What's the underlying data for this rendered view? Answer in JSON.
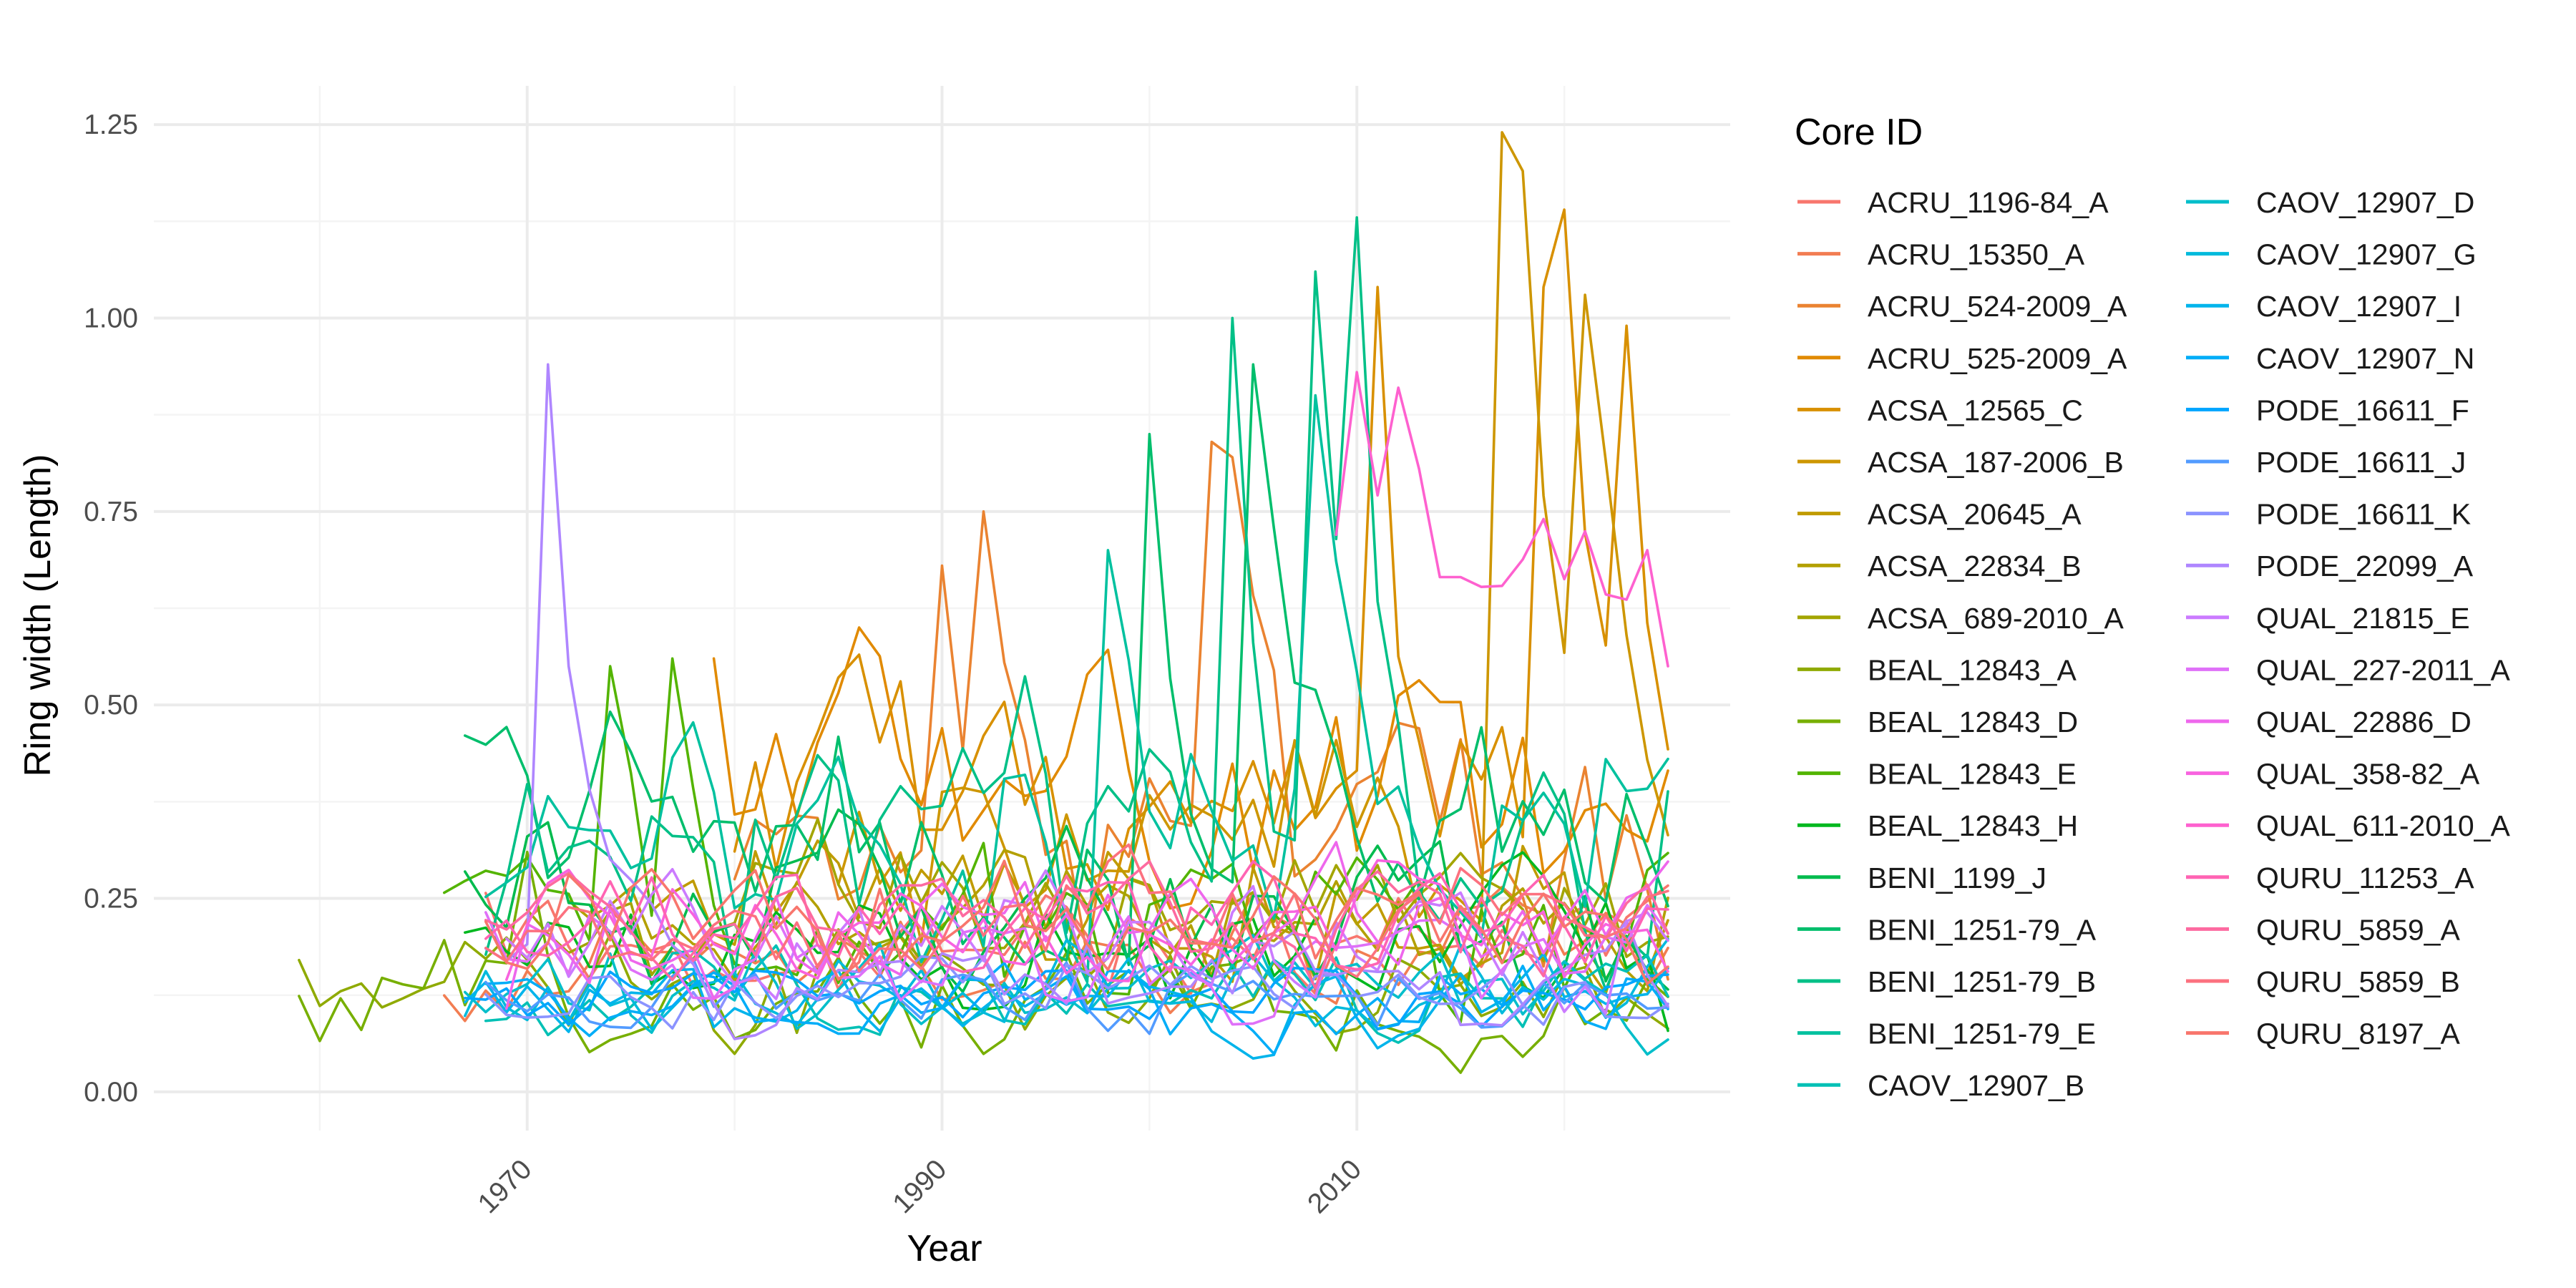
{
  "chart_data": {
    "type": "line",
    "title": "",
    "xlabel": "Year",
    "ylabel": "Ring width (Length)",
    "xlim": [
      1952,
      2028
    ],
    "ylim": [
      -0.05,
      1.3
    ],
    "x_ticks": [
      1970,
      1990,
      2010
    ],
    "x_minor_ticks": [
      1960,
      1980,
      2000,
      2020
    ],
    "y_ticks": [
      0.0,
      0.25,
      0.5,
      0.75,
      1.0,
      1.25
    ],
    "y_tick_labels": [
      "0.00",
      "0.25",
      "0.50",
      "0.75",
      "1.00",
      "1.25"
    ],
    "grid": true,
    "legend": {
      "title": "Core ID",
      "position": "right",
      "columns": 2
    },
    "series": [
      {
        "name": "ACRU_1196-84_A",
        "color": "#F8766D",
        "start": 1968,
        "end": 2025,
        "mean": 0.19,
        "amp": 0.09,
        "seed": 1
      },
      {
        "name": "ACRU_15350_A",
        "color": "#F27D52",
        "start": 1966,
        "end": 2025,
        "mean": 0.18,
        "amp": 0.09,
        "seed": 2
      },
      {
        "name": "ACRU_524-2009_A",
        "color": "#EA8331",
        "start": 1980,
        "end": 2025,
        "mean": 0.33,
        "amp": 0.2,
        "seed": 3,
        "peaks": [
          [
            1990,
            0.68
          ],
          [
            1992,
            0.75
          ],
          [
            2003,
            0.84
          ],
          [
            2004,
            0.82
          ]
        ]
      },
      {
        "name": "ACRU_525-2009_A",
        "color": "#E18A00",
        "start": 1979,
        "end": 2025,
        "mean": 0.35,
        "amp": 0.18,
        "seed": 4,
        "peaks": [
          [
            1979,
            0.56
          ],
          [
            1986,
            0.6
          ]
        ]
      },
      {
        "name": "ACSA_12565_C",
        "color": "#D89000",
        "start": 1980,
        "end": 2025,
        "mean": 0.35,
        "amp": 0.2,
        "seed": 5,
        "peaks": [
          [
            2011,
            1.04
          ],
          [
            2019,
            1.04
          ],
          [
            2020,
            1.14
          ],
          [
            2023,
            0.99
          ]
        ]
      },
      {
        "name": "ACSA_187-2006_B",
        "color": "#CD9600",
        "start": 1985,
        "end": 2025,
        "mean": 0.35,
        "amp": 0.18,
        "seed": 6,
        "peaks": [
          [
            2017,
            1.24
          ],
          [
            2018,
            1.19
          ],
          [
            2021,
            1.03
          ]
        ]
      },
      {
        "name": "ACSA_20645_A",
        "color": "#C09B00",
        "start": 1976,
        "end": 2025,
        "mean": 0.25,
        "amp": 0.14,
        "seed": 7
      },
      {
        "name": "ACSA_22834_B",
        "color": "#B3A000",
        "start": 1972,
        "end": 2025,
        "mean": 0.22,
        "amp": 0.12,
        "seed": 8
      },
      {
        "name": "ACSA_689-2010_A",
        "color": "#A3A500",
        "start": 1970,
        "end": 2025,
        "mean": 0.24,
        "amp": 0.13,
        "seed": 9
      },
      {
        "name": "BEAL_12843_A",
        "color": "#8FAA00",
        "start": 1959,
        "end": 2025,
        "mean": 0.14,
        "amp": 0.1,
        "seed": 10,
        "peaks": [
          [
            1961,
            0.13
          ],
          [
            1962,
            0.14
          ]
        ]
      },
      {
        "name": "BEAL_12843_D",
        "color": "#77AF00",
        "start": 1959,
        "end": 2025,
        "mean": 0.12,
        "amp": 0.09,
        "seed": 11,
        "peaks": [
          [
            1970,
            0.31
          ]
        ]
      },
      {
        "name": "BEAL_12843_E",
        "color": "#53B400",
        "start": 1966,
        "end": 2025,
        "mean": 0.2,
        "amp": 0.15,
        "seed": 12,
        "peaks": [
          [
            1974,
            0.55
          ],
          [
            1977,
            0.56
          ]
        ]
      },
      {
        "name": "BEAL_12843_H",
        "color": "#00B81F",
        "start": 1967,
        "end": 2025,
        "mean": 0.19,
        "amp": 0.13,
        "seed": 13
      },
      {
        "name": "BENI_1199_J",
        "color": "#00BB4E",
        "start": 1967,
        "end": 2025,
        "mean": 0.22,
        "amp": 0.14,
        "seed": 14,
        "peaks": [
          [
            1970,
            0.33
          ]
        ]
      },
      {
        "name": "BENI_1251-79_A",
        "color": "#00BE6C",
        "start": 1967,
        "end": 2025,
        "mean": 0.3,
        "amp": 0.2,
        "seed": 15,
        "peaks": [
          [
            2000,
            0.85
          ],
          [
            2005,
            0.94
          ]
        ]
      },
      {
        "name": "BENI_1251-79_B",
        "color": "#00C087",
        "start": 1968,
        "end": 2025,
        "mean": 0.3,
        "amp": 0.22,
        "seed": 16,
        "peaks": [
          [
            2004,
            1.0
          ],
          [
            2008,
            1.06
          ],
          [
            2010,
            1.13
          ]
        ]
      },
      {
        "name": "BENI_1251-79_E",
        "color": "#00C19F",
        "start": 1968,
        "end": 2025,
        "mean": 0.3,
        "amp": 0.22,
        "seed": 17,
        "peaks": [
          [
            1998,
            0.7
          ],
          [
            2008,
            0.9
          ]
        ]
      },
      {
        "name": "CAOV_12907_B",
        "color": "#00C0B5",
        "start": 1968,
        "end": 2025,
        "mean": 0.13,
        "amp": 0.08,
        "seed": 18
      },
      {
        "name": "CAOV_12907_D",
        "color": "#00BECA",
        "start": 1967,
        "end": 2025,
        "mean": 0.14,
        "amp": 0.08,
        "seed": 19
      },
      {
        "name": "CAOV_12907_G",
        "color": "#00BADC",
        "start": 1967,
        "end": 2025,
        "mean": 0.13,
        "amp": 0.08,
        "seed": 20
      },
      {
        "name": "CAOV_12907_I",
        "color": "#00B4EB",
        "start": 1967,
        "end": 2025,
        "mean": 0.12,
        "amp": 0.07,
        "seed": 21
      },
      {
        "name": "CAOV_12907_N",
        "color": "#00ADF8",
        "start": 1968,
        "end": 2025,
        "mean": 0.12,
        "amp": 0.07,
        "seed": 22
      },
      {
        "name": "PODE_16611_F",
        "color": "#00A5FF",
        "start": 1967,
        "end": 2025,
        "mean": 0.12,
        "amp": 0.06,
        "seed": 23
      },
      {
        "name": "PODE_16611_J",
        "color": "#529BFF",
        "start": 1968,
        "end": 2025,
        "mean": 0.12,
        "amp": 0.06,
        "seed": 24
      },
      {
        "name": "PODE_16611_K",
        "color": "#8B93FF",
        "start": 1968,
        "end": 2025,
        "mean": 0.12,
        "amp": 0.06,
        "seed": 25
      },
      {
        "name": "PODE_22099_A",
        "color": "#AF86FF",
        "start": 1968,
        "end": 2025,
        "mean": 0.15,
        "amp": 0.08,
        "seed": 26,
        "peaks": [
          [
            1971,
            0.94
          ],
          [
            1972,
            0.55
          ]
        ]
      },
      {
        "name": "QUAL_21815_E",
        "color": "#CB7BFF",
        "start": 1969,
        "end": 2025,
        "mean": 0.18,
        "amp": 0.1,
        "seed": 27
      },
      {
        "name": "QUAL_227-2011_A",
        "color": "#DF70F8",
        "start": 1968,
        "end": 2025,
        "mean": 0.18,
        "amp": 0.1,
        "seed": 28
      },
      {
        "name": "QUAL_22886_D",
        "color": "#EE67EC",
        "start": 1969,
        "end": 2025,
        "mean": 0.2,
        "amp": 0.11,
        "seed": 29
      },
      {
        "name": "QUAL_358-82_A",
        "color": "#F863DF",
        "start": 1969,
        "end": 2025,
        "mean": 0.2,
        "amp": 0.11,
        "seed": 30
      },
      {
        "name": "QUAL_611-2010_A",
        "color": "#FE61CF",
        "start": 2009,
        "end": 2025,
        "mean": 0.65,
        "amp": 0.12,
        "seed": 31,
        "peaks": [
          [
            2009,
            0.72
          ],
          [
            2010,
            0.93
          ],
          [
            2012,
            0.91
          ],
          [
            2024,
            0.7
          ],
          [
            2025,
            0.55
          ]
        ]
      },
      {
        "name": "QURU_11253_A",
        "color": "#FF64B3",
        "start": 1968,
        "end": 2025,
        "mean": 0.24,
        "amp": 0.1,
        "seed": 32
      },
      {
        "name": "QURU_5859_A",
        "color": "#FD6AA0",
        "start": 1968,
        "end": 2025,
        "mean": 0.23,
        "amp": 0.1,
        "seed": 33
      },
      {
        "name": "QURU_5859_B",
        "color": "#FC717F",
        "start": 1968,
        "end": 2025,
        "mean": 0.22,
        "amp": 0.1,
        "seed": 34
      },
      {
        "name": "QURU_8197_A",
        "color": "#F8766D",
        "start": 1968,
        "end": 2025,
        "mean": 0.22,
        "amp": 0.1,
        "seed": 35
      }
    ]
  }
}
